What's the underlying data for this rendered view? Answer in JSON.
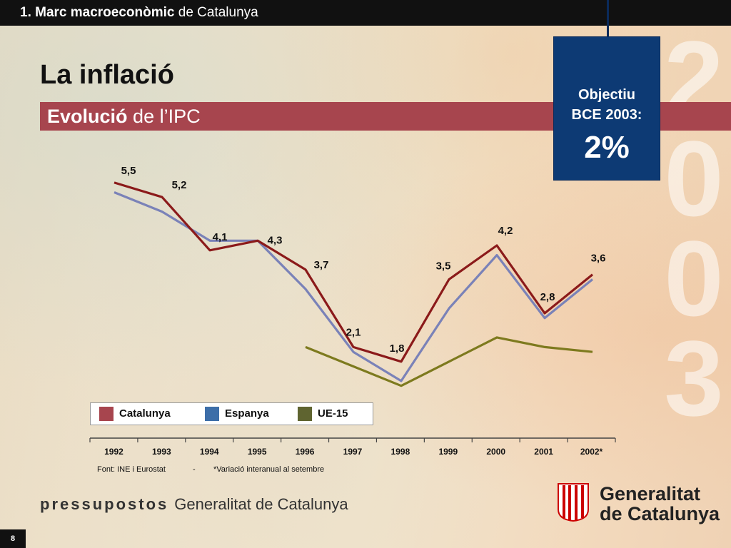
{
  "header": {
    "section_bold": "1. Marc macroeconòmic",
    "section_rest": "de Catalunya"
  },
  "page_title": "La inflació",
  "subtitle": {
    "bold": "Evolució",
    "rest": "de l’IPC"
  },
  "objective": {
    "line1": "Objectiu",
    "line2": "BCE 2003:",
    "value": "2%"
  },
  "big_year": [
    "2",
    "0",
    "0",
    "3"
  ],
  "colors": {
    "catalunya": "#8b1a1a",
    "espanya": "#7a82b8",
    "ue15": "#7d7a1e",
    "legend_catalunya": "#a7454e",
    "legend_espanya": "#3d6ea8",
    "legend_ue15": "#5f6430"
  },
  "chart_data": {
    "type": "line",
    "x": [
      "1992",
      "1993",
      "1994",
      "1995",
      "1996",
      "1997",
      "1998",
      "1999",
      "2000",
      "2001",
      "2002*"
    ],
    "series": [
      {
        "name": "Catalunya",
        "values": [
          5.5,
          5.2,
          4.1,
          4.3,
          3.7,
          2.1,
          1.8,
          3.5,
          4.2,
          2.8,
          3.6
        ]
      },
      {
        "name": "Espanya",
        "values": [
          5.3,
          4.9,
          4.3,
          4.3,
          3.3,
          2.0,
          1.4,
          2.9,
          4.0,
          2.7,
          3.5
        ]
      },
      {
        "name": "UE-15",
        "values": [
          null,
          null,
          null,
          null,
          2.1,
          1.7,
          1.3,
          1.8,
          2.3,
          2.1,
          2.0
        ]
      }
    ],
    "data_labels": [
      "5,5",
      "5,2",
      "4,1",
      "4,3",
      "3,7",
      "2,1",
      "1,8",
      "3,5",
      "4,2",
      "2,8",
      "3,6"
    ],
    "ylim": [
      1.0,
      6.0
    ],
    "grid": false,
    "legend_position": "bottom-left"
  },
  "legend": [
    "Catalunya",
    "Espanya",
    "UE-15"
  ],
  "footnote": {
    "source": "Font: INE i Eurostat",
    "separator": "-",
    "note": "*Variació interanual al setembre"
  },
  "footer": {
    "brand_bold": "pressupostos",
    "brand_rest": "Generalitat de Catalunya"
  },
  "logo": {
    "line1": "Generalitat",
    "line2": "de Catalunya"
  },
  "page_number": "8"
}
